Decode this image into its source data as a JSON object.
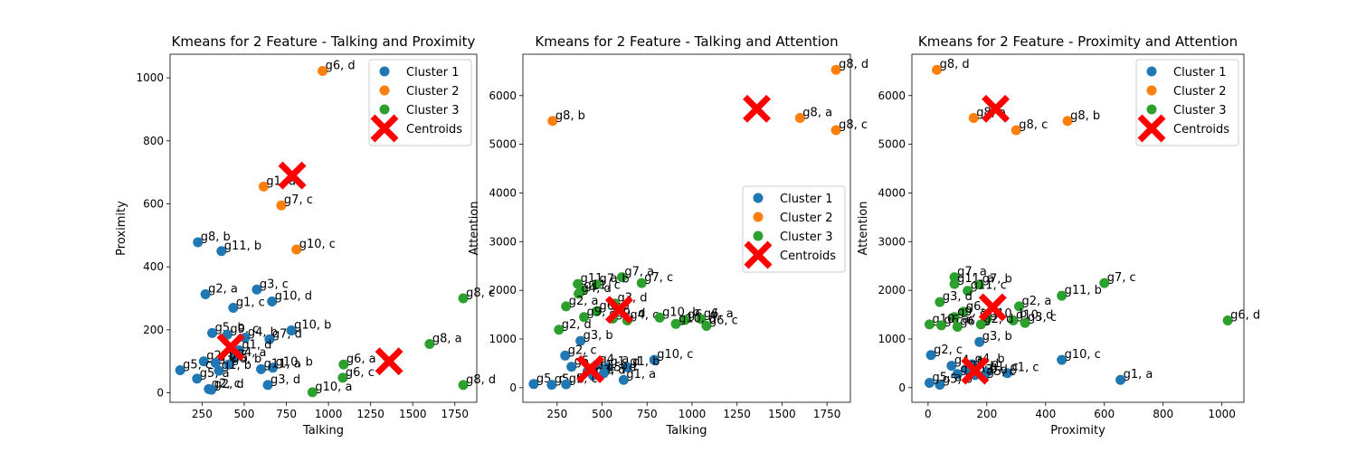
{
  "colors": {
    "cluster1": "#1f77b4",
    "cluster2": "#ff7f0e",
    "cluster3": "#2ca02c",
    "centroid": "#ff0000"
  },
  "chart_data": [
    {
      "type": "scatter",
      "title": "Kmeans for 2 Feature - Talking and Proximity",
      "xlabel": "Talking",
      "ylabel": "Proximity",
      "xlim": [
        60,
        1880
      ],
      "ylim": [
        -30,
        1075
      ],
      "xticks": [
        250,
        500,
        750,
        1000,
        1250,
        1500,
        1750
      ],
      "yticks": [
        0,
        200,
        400,
        600,
        800,
        1000
      ],
      "legend": {
        "position": "top-right",
        "entries": [
          "Cluster 1",
          "Cluster 2",
          "Cluster 3",
          "Centroids"
        ]
      },
      "series": [
        {
          "name": "Cluster 1",
          "color": "cluster1",
          "points": [
            {
              "x": 225,
              "y": 478,
              "label": "g8, b"
            },
            {
              "x": 365,
              "y": 450,
              "label": "g11, b"
            },
            {
              "x": 270,
              "y": 313,
              "label": "g2, a"
            },
            {
              "x": 575,
              "y": 328,
              "label": "g3, c"
            },
            {
              "x": 435,
              "y": 270,
              "label": "g1, c"
            },
            {
              "x": 665,
              "y": 290,
              "label": "g10, d"
            },
            {
              "x": 780,
              "y": 198,
              "label": "g10, b"
            },
            {
              "x": 310,
              "y": 190,
              "label": "g5, b"
            },
            {
              "x": 400,
              "y": 185,
              "label": "g9, c"
            },
            {
              "x": 505,
              "y": 175,
              "label": "g4, b"
            },
            {
              "x": 650,
              "y": 170,
              "label": "g7, d"
            },
            {
              "x": 470,
              "y": 135,
              "label": "g1, d"
            },
            {
              "x": 440,
              "y": 110,
              "label": "g4, a"
            },
            {
              "x": 260,
              "y": 100,
              "label": "g2, b"
            },
            {
              "x": 330,
              "y": 95,
              "label": "g3, a"
            },
            {
              "x": 410,
              "y": 90,
              "label": "g6, b"
            },
            {
              "x": 670,
              "y": 80,
              "label": "g10, b"
            },
            {
              "x": 120,
              "y": 72,
              "label": "g5, c"
            },
            {
              "x": 600,
              "y": 75,
              "label": "g11, a"
            },
            {
              "x": 220,
              "y": 45,
              "label": "g5, a"
            },
            {
              "x": 350,
              "y": 70,
              "label": "g1, b"
            },
            {
              "x": 640,
              "y": 25,
              "label": "g3, d"
            },
            {
              "x": 290,
              "y": 12,
              "label": "g2, c"
            },
            {
              "x": 305,
              "y": 10,
              "label": "g2, d"
            }
          ]
        },
        {
          "name": "Cluster 2",
          "color": "cluster2",
          "points": [
            {
              "x": 965,
              "y": 1022,
              "label": "g6, d"
            },
            {
              "x": 615,
              "y": 655,
              "label": "g1, a"
            },
            {
              "x": 720,
              "y": 595,
              "label": "g7, c"
            },
            {
              "x": 810,
              "y": 455,
              "label": "g10, c"
            }
          ]
        },
        {
          "name": "Cluster 3",
          "color": "cluster3",
          "points": [
            {
              "x": 1800,
              "y": 300,
              "label": "g8, c"
            },
            {
              "x": 1600,
              "y": 155,
              "label": "g8, a"
            },
            {
              "x": 1800,
              "y": 25,
              "label": "g8, d"
            },
            {
              "x": 1090,
              "y": 90,
              "label": "g6, a"
            },
            {
              "x": 1085,
              "y": 48,
              "label": "g6, c"
            },
            {
              "x": 905,
              "y": 2,
              "label": "g10, a"
            }
          ]
        },
        {
          "name": "Centroids",
          "color": "centroid",
          "marker": "X",
          "points": [
            {
              "x": 785,
              "y": 690
            },
            {
              "x": 1360,
              "y": 100
            },
            {
              "x": 420,
              "y": 145
            }
          ]
        }
      ]
    },
    {
      "type": "scatter",
      "title": "Kmeans for 2 Feature - Talking and Attention",
      "xlabel": "Talking",
      "ylabel": "Attention",
      "xlim": [
        60,
        1880
      ],
      "ylim": [
        -300,
        6850
      ],
      "xticks": [
        250,
        500,
        750,
        1000,
        1250,
        1500,
        1750
      ],
      "yticks": [
        0,
        1000,
        2000,
        3000,
        4000,
        5000,
        6000
      ],
      "legend": {
        "position": "center-right",
        "entries": [
          "Cluster 1",
          "Cluster 2",
          "Cluster 3",
          "Centroids"
        ]
      },
      "series": [
        {
          "name": "Cluster 1",
          "color": "cluster1",
          "points": [
            {
              "x": 380,
              "y": 960,
              "label": "g3, b"
            },
            {
              "x": 295,
              "y": 660,
              "label": "g2, c"
            },
            {
              "x": 790,
              "y": 570,
              "label": "g10, c"
            },
            {
              "x": 330,
              "y": 430,
              "label": "g5, a"
            },
            {
              "x": 470,
              "y": 470,
              "label": "g4, a"
            },
            {
              "x": 530,
              "y": 420,
              "label": "g1, d"
            },
            {
              "x": 640,
              "y": 420,
              "label": "g1, b"
            },
            {
              "x": 420,
              "y": 340,
              "label": "g11, b"
            },
            {
              "x": 450,
              "y": 250,
              "label": "g3, d"
            },
            {
              "x": 510,
              "y": 300,
              "label": "g5, d"
            },
            {
              "x": 620,
              "y": 160,
              "label": "g1, a"
            },
            {
              "x": 120,
              "y": 75,
              "label": "g5, c"
            },
            {
              "x": 220,
              "y": 60,
              "label": "g5, b"
            },
            {
              "x": 300,
              "y": 70,
              "label": "g9, c"
            }
          ]
        },
        {
          "name": "Cluster 2",
          "color": "cluster2",
          "points": [
            {
              "x": 225,
              "y": 5480,
              "label": "g8, b"
            },
            {
              "x": 1800,
              "y": 6530,
              "label": "g8, d"
            },
            {
              "x": 1600,
              "y": 5540,
              "label": "g8, a"
            },
            {
              "x": 1800,
              "y": 5290,
              "label": "g8, c"
            }
          ]
        },
        {
          "name": "Cluster 3",
          "color": "cluster3",
          "points": [
            {
              "x": 610,
              "y": 2270,
              "label": "g7, a"
            },
            {
              "x": 720,
              "y": 2150,
              "label": "g7, c"
            },
            {
              "x": 365,
              "y": 2130,
              "label": "g11, a"
            },
            {
              "x": 470,
              "y": 2120,
              "label": "g7, b"
            },
            {
              "x": 385,
              "y": 1990,
              "label": "g11, c"
            },
            {
              "x": 370,
              "y": 1930,
              "label": "g4, d"
            },
            {
              "x": 300,
              "y": 1670,
              "label": "g2, a"
            },
            {
              "x": 570,
              "y": 1730,
              "label": "g3, d"
            },
            {
              "x": 470,
              "y": 1570,
              "label": "g6, b"
            },
            {
              "x": 400,
              "y": 1450,
              "label": "g9, a"
            },
            {
              "x": 560,
              "y": 1420,
              "label": "g9, d"
            },
            {
              "x": 640,
              "y": 1380,
              "label": "g4, c"
            },
            {
              "x": 820,
              "y": 1440,
              "label": "g10, b"
            },
            {
              "x": 960,
              "y": 1390,
              "label": "g6, d"
            },
            {
              "x": 1050,
              "y": 1410,
              "label": "g6, a"
            },
            {
              "x": 910,
              "y": 1310,
              "label": "g10, d"
            },
            {
              "x": 1080,
              "y": 1270,
              "label": "g6, c"
            },
            {
              "x": 260,
              "y": 1190,
              "label": "g2, d"
            }
          ]
        },
        {
          "name": "Centroids",
          "color": "centroid",
          "marker": "X",
          "points": [
            {
              "x": 1360,
              "y": 5730
            },
            {
              "x": 595,
              "y": 1600
            },
            {
              "x": 435,
              "y": 380
            }
          ]
        }
      ]
    },
    {
      "type": "scatter",
      "title": "Kmeans for 2 Feature - Proximity and Attention",
      "xlabel": "Proximity",
      "ylabel": "Attention",
      "xlim": [
        -55,
        1075
      ],
      "ylim": [
        -300,
        6850
      ],
      "xticks": [
        0,
        200,
        400,
        600,
        800,
        1000
      ],
      "yticks": [
        0,
        1000,
        2000,
        3000,
        4000,
        5000,
        6000
      ],
      "legend": {
        "position": "top-right",
        "entries": [
          "Cluster 1",
          "Cluster 2",
          "Cluster 3",
          "Centroids"
        ]
      },
      "series": [
        {
          "name": "Cluster 1",
          "color": "cluster1",
          "points": [
            {
              "x": 175,
              "y": 940,
              "label": "g3, b"
            },
            {
              "x": 10,
              "y": 670,
              "label": "g2, c"
            },
            {
              "x": 455,
              "y": 570,
              "label": "g10, c"
            },
            {
              "x": 655,
              "y": 160,
              "label": "g1, a"
            },
            {
              "x": 80,
              "y": 450,
              "label": "g4, a"
            },
            {
              "x": 150,
              "y": 480,
              "label": "g4, b"
            },
            {
              "x": 130,
              "y": 380,
              "label": "g1, d"
            },
            {
              "x": 200,
              "y": 320,
              "label": "g1, c"
            },
            {
              "x": 270,
              "y": 300,
              "label": "g1, c"
            },
            {
              "x": 100,
              "y": 280,
              "label": "g11, b"
            },
            {
              "x": 160,
              "y": 260,
              "label": "g3, d"
            },
            {
              "x": 190,
              "y": 220,
              "label": "g5, c"
            },
            {
              "x": 40,
              "y": 60,
              "label": "g5, b"
            },
            {
              "x": 5,
              "y": 100,
              "label": "g5, a"
            }
          ]
        },
        {
          "name": "Cluster 2",
          "color": "cluster2",
          "points": [
            {
              "x": 30,
              "y": 6530,
              "label": "g8, d"
            },
            {
              "x": 155,
              "y": 5540,
              "label": "g8, a"
            },
            {
              "x": 475,
              "y": 5480,
              "label": "g8, b"
            },
            {
              "x": 300,
              "y": 5290,
              "label": "g8, c"
            }
          ]
        },
        {
          "name": "Cluster 3",
          "color": "cluster3",
          "points": [
            {
              "x": 600,
              "y": 2150,
              "label": "g7, c"
            },
            {
              "x": 455,
              "y": 1890,
              "label": "g11, b"
            },
            {
              "x": 1020,
              "y": 1380,
              "label": "g6, d"
            },
            {
              "x": 90,
              "y": 2270,
              "label": "g7, a"
            },
            {
              "x": 90,
              "y": 2130,
              "label": "g11, a"
            },
            {
              "x": 175,
              "y": 2120,
              "label": "g7, b"
            },
            {
              "x": 135,
              "y": 1990,
              "label": "g11, c"
            },
            {
              "x": 40,
              "y": 1760,
              "label": "g3, d"
            },
            {
              "x": 310,
              "y": 1670,
              "label": "g2, a"
            },
            {
              "x": 120,
              "y": 1560,
              "label": "g6, b"
            },
            {
              "x": 90,
              "y": 1450,
              "label": "g9, a"
            },
            {
              "x": 200,
              "y": 1410,
              "label": "g10, b"
            },
            {
              "x": 290,
              "y": 1380,
              "label": "g10, d"
            },
            {
              "x": 330,
              "y": 1330,
              "label": "g3, c"
            },
            {
              "x": 5,
              "y": 1300,
              "label": "g10, a"
            },
            {
              "x": 45,
              "y": 1280,
              "label": "g6, a"
            },
            {
              "x": 100,
              "y": 1250,
              "label": "g6, c"
            },
            {
              "x": 180,
              "y": 1300,
              "label": "g2, d"
            }
          ]
        },
        {
          "name": "Centroids",
          "color": "centroid",
          "marker": "X",
          "points": [
            {
              "x": 230,
              "y": 5730
            },
            {
              "x": 220,
              "y": 1650
            },
            {
              "x": 160,
              "y": 350
            }
          ]
        }
      ]
    }
  ]
}
